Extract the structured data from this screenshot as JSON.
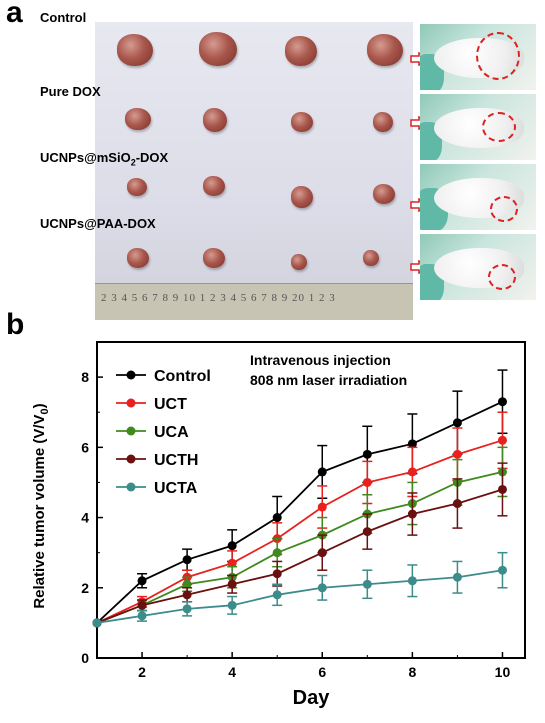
{
  "panel_a": {
    "letter": "a",
    "groups": [
      {
        "label": "Control"
      },
      {
        "label": "Pure DOX"
      },
      {
        "label_main": "UCNPs@mSiO",
        "label_sub": "2",
        "label_tail": "-DOX"
      },
      {
        "label": "UCNPs@PAA-DOX"
      }
    ],
    "ruler_text": "2 3 4 5 6 7 8 9 10 1 2 3 4 5 6 7 8 9 20 1 2 3"
  },
  "panel_b": {
    "letter": "b"
  },
  "chart_data": {
    "type": "line",
    "xlabel": "Day",
    "ylabel_main": "Relative tumor volume (V/V",
    "ylabel_sub": "0",
    "ylabel_tail": ")",
    "xlim": [
      1,
      10.5
    ],
    "ylim": [
      0,
      9
    ],
    "xticks": [
      2,
      4,
      6,
      8,
      10
    ],
    "yticks": [
      0,
      2,
      4,
      6,
      8
    ],
    "annotation": [
      "Intravenous injection",
      "808 nm laser irradiation"
    ],
    "legend_position": "top-left",
    "x": [
      1,
      2,
      3,
      4,
      5,
      6,
      7,
      8,
      9,
      10
    ],
    "series": [
      {
        "name": "Control",
        "color": "#000000",
        "values": [
          1.0,
          2.2,
          2.8,
          3.2,
          4.0,
          5.3,
          5.8,
          6.1,
          6.7,
          7.3
        ],
        "errors": [
          0,
          0.2,
          0.3,
          0.45,
          0.6,
          0.75,
          0.8,
          0.85,
          0.9,
          0.9
        ]
      },
      {
        "name": "UCT",
        "color": "#e8211e",
        "values": [
          1.0,
          1.6,
          2.3,
          2.7,
          3.4,
          4.3,
          5.0,
          5.3,
          5.8,
          6.2
        ],
        "errors": [
          0,
          0.15,
          0.2,
          0.35,
          0.45,
          0.6,
          0.6,
          0.7,
          0.75,
          0.8
        ]
      },
      {
        "name": "UCA",
        "color": "#3f8a1f",
        "values": [
          1.0,
          1.5,
          2.1,
          2.3,
          3.0,
          3.5,
          4.1,
          4.4,
          5.0,
          5.3
        ],
        "errors": [
          0,
          0.15,
          0.2,
          0.3,
          0.4,
          0.5,
          0.55,
          0.6,
          0.65,
          0.7
        ]
      },
      {
        "name": "UCTH",
        "color": "#6b1010",
        "values": [
          1.0,
          1.5,
          1.8,
          2.1,
          2.4,
          3.0,
          3.6,
          4.1,
          4.4,
          4.8
        ],
        "errors": [
          0,
          0.15,
          0.2,
          0.25,
          0.35,
          0.5,
          0.5,
          0.6,
          0.7,
          0.75
        ]
      },
      {
        "name": "UCTA",
        "color": "#3b8c8a",
        "values": [
          1.0,
          1.2,
          1.4,
          1.5,
          1.8,
          2.0,
          2.1,
          2.2,
          2.3,
          2.5
        ],
        "errors": [
          0,
          0.15,
          0.2,
          0.25,
          0.3,
          0.35,
          0.4,
          0.45,
          0.45,
          0.5
        ]
      }
    ]
  }
}
